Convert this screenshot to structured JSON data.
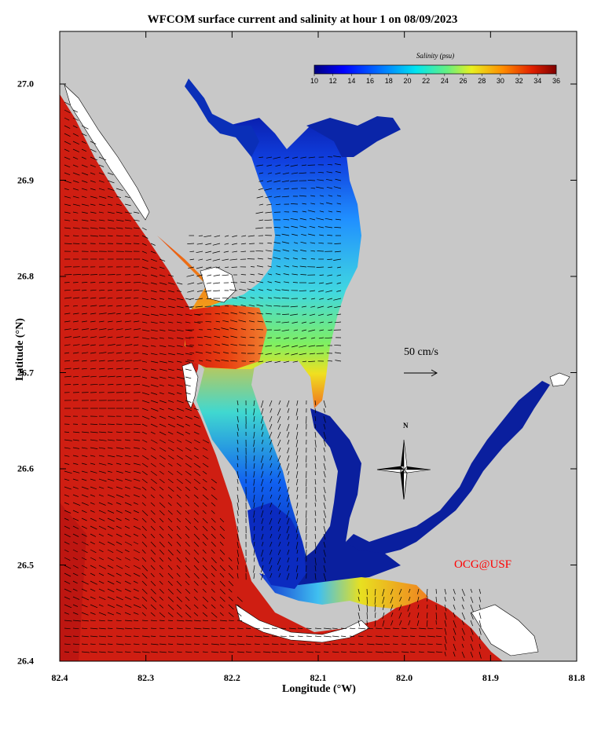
{
  "title": "WFCOM surface current and salinity at hour 1 on 08/09/2023",
  "xlabel": "Longitude (°W)",
  "ylabel": "Latitude (°N)",
  "x_ticks": [
    "82.4",
    "82.3",
    "82.2",
    "82.1",
    "82.0",
    "81.9",
    "81.8"
  ],
  "y_ticks": [
    "26.4",
    "26.5",
    "26.6",
    "26.7",
    "26.8",
    "26.9",
    "27.0"
  ],
  "legend": {
    "title": "Salinity (psu)",
    "ticks": [
      "10",
      "12",
      "14",
      "16",
      "18",
      "20",
      "22",
      "24",
      "26",
      "28",
      "30",
      "32",
      "34",
      "36"
    ],
    "range": [
      10,
      36
    ]
  },
  "scale_label": "50 cm/s",
  "credit": "OCG@USF",
  "compass_label": "N",
  "colors": {
    "land": "#c8c8c8",
    "high_salinity": "#cc1a10",
    "low_salinity": "#0a1f9e",
    "credit": "#ff0000"
  },
  "map_extent": {
    "lon": [
      82.4,
      81.8
    ],
    "lat": [
      26.4,
      27.05
    ]
  }
}
